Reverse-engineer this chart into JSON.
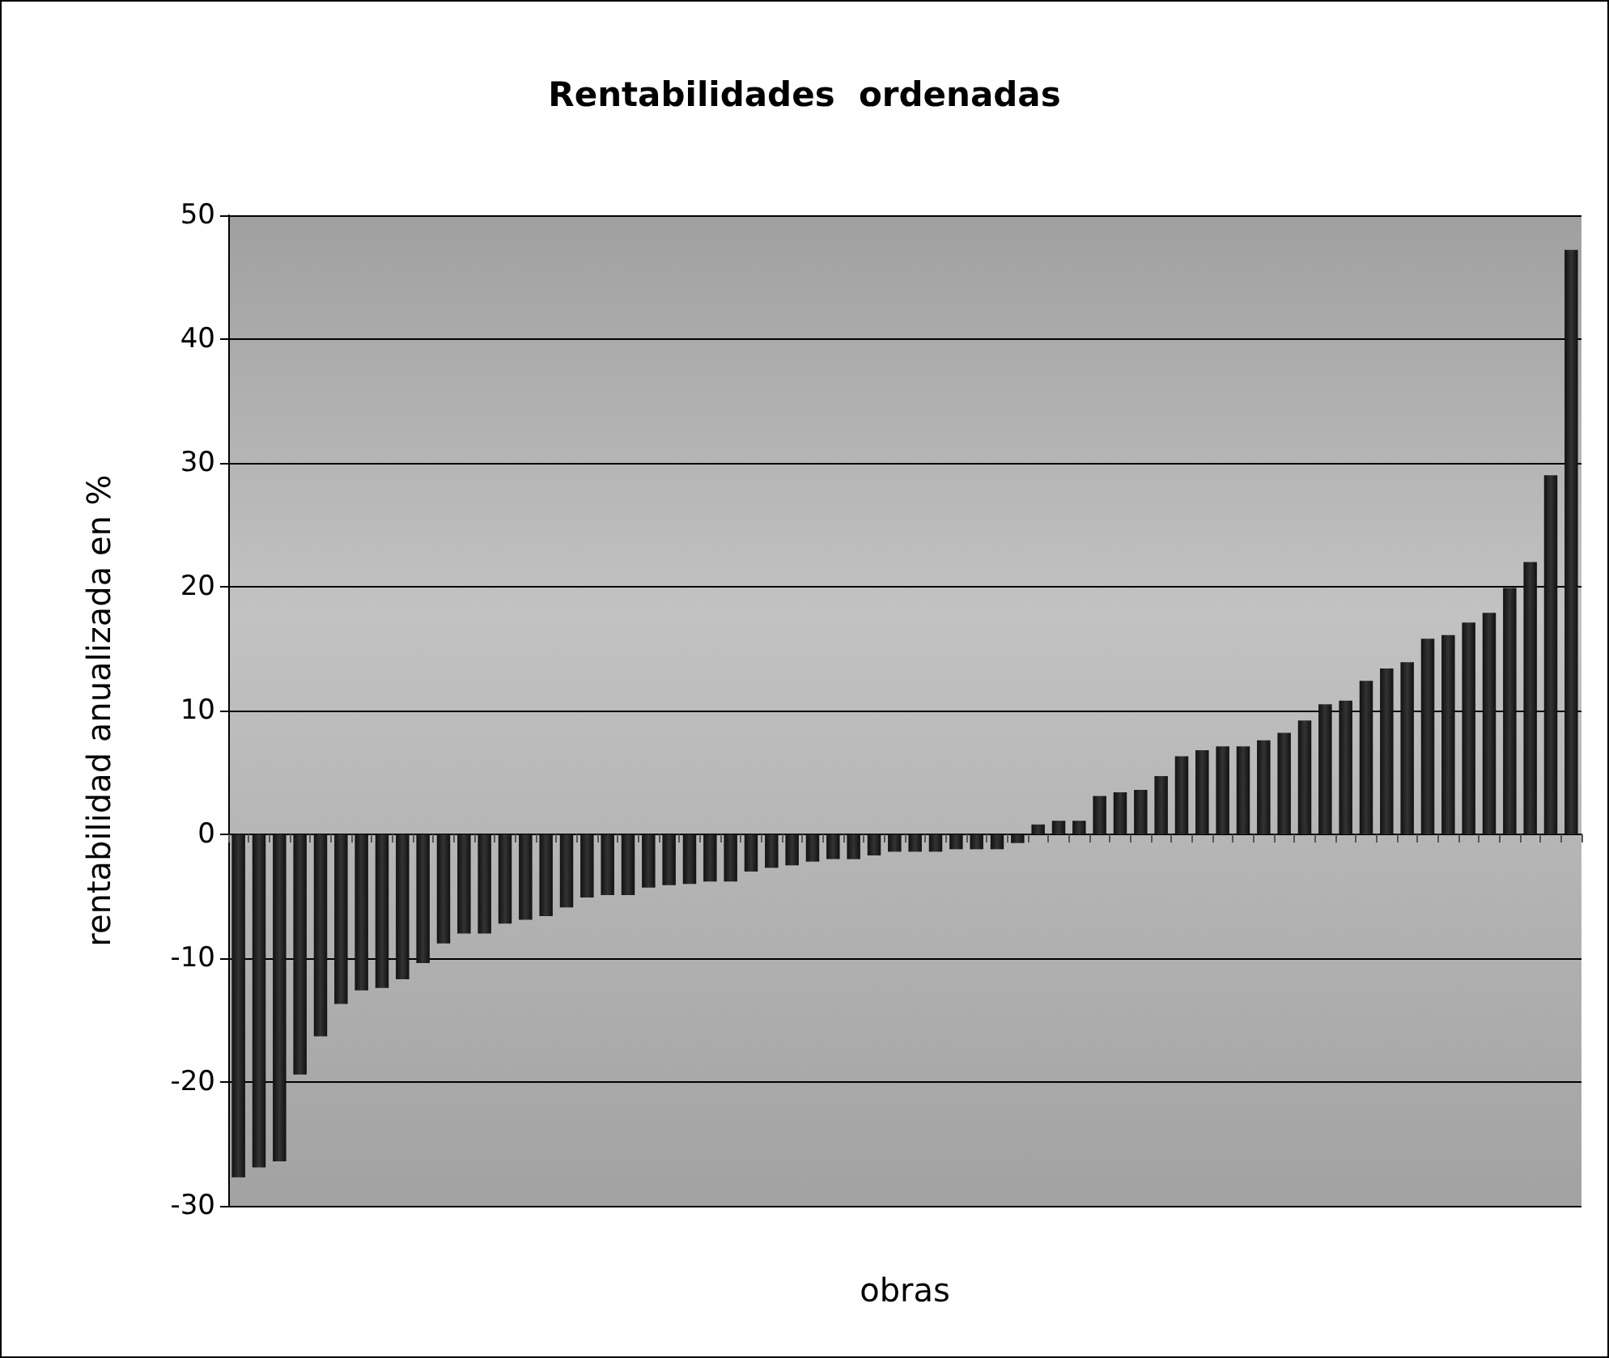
{
  "chart_data": {
    "type": "bar",
    "title": "Rentabilidades  ordenadas",
    "xlabel": "obras",
    "ylabel": "rentabilidad anualizada en %",
    "categories": [
      null,
      null,
      null,
      null,
      null,
      null,
      null,
      null,
      null,
      null,
      null,
      null,
      null,
      null,
      null,
      null,
      null,
      null,
      null,
      null,
      null,
      null,
      null,
      null,
      null,
      null,
      null,
      null,
      null,
      null,
      null,
      null,
      null,
      null,
      null,
      null,
      null,
      null,
      null,
      null,
      null,
      null,
      null,
      null,
      null,
      null,
      null,
      null,
      null,
      null,
      null,
      null,
      null,
      null,
      null,
      null,
      null,
      null,
      null,
      null,
      null,
      null,
      null,
      null,
      null,
      null
    ],
    "values": [
      -27.7,
      -26.9,
      -26.4,
      -19.4,
      -16.3,
      -13.7,
      -12.6,
      -12.4,
      -11.7,
      -10.4,
      -8.8,
      -8,
      -8,
      -7.2,
      -6.9,
      -6.6,
      -5.9,
      -5.1,
      -4.9,
      -4.9,
      -4.3,
      -4.1,
      -4,
      -3.8,
      -3.8,
      -3,
      -2.7,
      -2.5,
      -2.2,
      -2,
      -2,
      -1.7,
      -1.4,
      -1.4,
      -1.4,
      -1.2,
      -1.2,
      -1.2,
      -0.7,
      0.8,
      1.1,
      1.1,
      3.1,
      3.4,
      3.6,
      4.7,
      6.3,
      6.8,
      7.1,
      7.1,
      7.6,
      8.2,
      9.2,
      10.5,
      10.8,
      12.4,
      13.4,
      13.9,
      15.8,
      16.1,
      17.1,
      17.9,
      19.9,
      22,
      29,
      47.2
    ],
    "color": "#333333",
    "ylim": [
      -30,
      50
    ],
    "yticks": [
      -30,
      -20,
      -10,
      0,
      10,
      20,
      30,
      40,
      50
    ],
    "grid": "y"
  }
}
